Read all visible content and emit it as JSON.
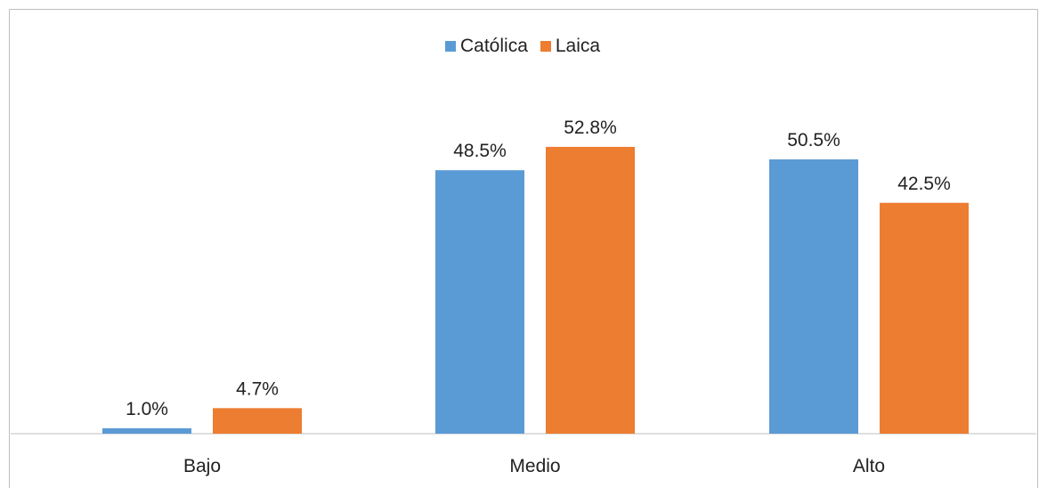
{
  "chart_data": {
    "type": "bar",
    "categories": [
      "Bajo",
      "Medio",
      "Alto"
    ],
    "series": [
      {
        "name": "Católica",
        "values": [
          1.0,
          48.5,
          50.5
        ],
        "labels": [
          "1.0%",
          "48.5%",
          "50.5%"
        ],
        "color": "#5b9bd5"
      },
      {
        "name": "Laica",
        "values": [
          4.7,
          52.8,
          42.5
        ],
        "labels": [
          "4.7%",
          "52.8%",
          "42.5%"
        ],
        "color": "#ed7d31"
      }
    ],
    "ylim": [
      0,
      60
    ],
    "grid": false,
    "legend_position": "top-center"
  }
}
